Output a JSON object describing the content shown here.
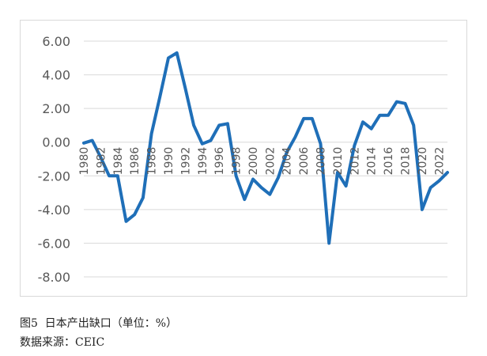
{
  "caption": {
    "line1": "图5  日本产出缺口（单位：%）",
    "line2": "数据来源：CEIC"
  },
  "colors": {
    "line": "#1f6fb8",
    "grid": "#d9d9d9",
    "tick_text": "#595959"
  },
  "chart_data": {
    "type": "line",
    "title": "",
    "xlabel": "",
    "ylabel": "",
    "ylim": [
      -8,
      6
    ],
    "yticks": [
      "6.00",
      "4.00",
      "2.00",
      "0.00",
      "-2.00",
      "-4.00",
      "-6.00",
      "-8.00"
    ],
    "xticks": [
      "1980",
      "1982",
      "1984",
      "1986",
      "1988",
      "1990",
      "1992",
      "1994",
      "1996",
      "1998",
      "2000",
      "2002",
      "2004",
      "2006",
      "2008",
      "2010",
      "2012",
      "2014",
      "2016",
      "2018",
      "2020",
      "2022"
    ],
    "grid": true,
    "legend": "none",
    "series": [
      {
        "x": [
          1980,
          1981,
          1982,
          1983,
          1984,
          1985,
          1986,
          1987,
          1988,
          1989,
          1990,
          1991,
          1992,
          1993,
          1994,
          1995,
          1996,
          1997,
          1998,
          1999,
          2000,
          2001,
          2002,
          2003,
          2004,
          2005,
          2006,
          2007,
          2008,
          2009,
          2010,
          2011,
          2012,
          2013,
          2014,
          2015,
          2016,
          2017,
          2018,
          2019,
          2020,
          2021,
          2022,
          2023
        ],
        "values": [
          -0.05,
          0.1,
          -0.9,
          -2.0,
          -2.0,
          -4.7,
          -4.3,
          -3.3,
          0.5,
          2.7,
          5.0,
          5.3,
          3.2,
          1.0,
          -0.1,
          0.1,
          1.0,
          1.1,
          -2.0,
          -3.4,
          -2.2,
          -2.7,
          -3.1,
          -2.1,
          -0.6,
          0.3,
          1.4,
          1.4,
          -0.1,
          -6.0,
          -1.8,
          -2.6,
          -0.2,
          1.2,
          0.8,
          1.6,
          1.6,
          2.4,
          2.3,
          1.0,
          -4.0,
          -2.7,
          -2.3,
          -1.8
        ]
      }
    ]
  }
}
